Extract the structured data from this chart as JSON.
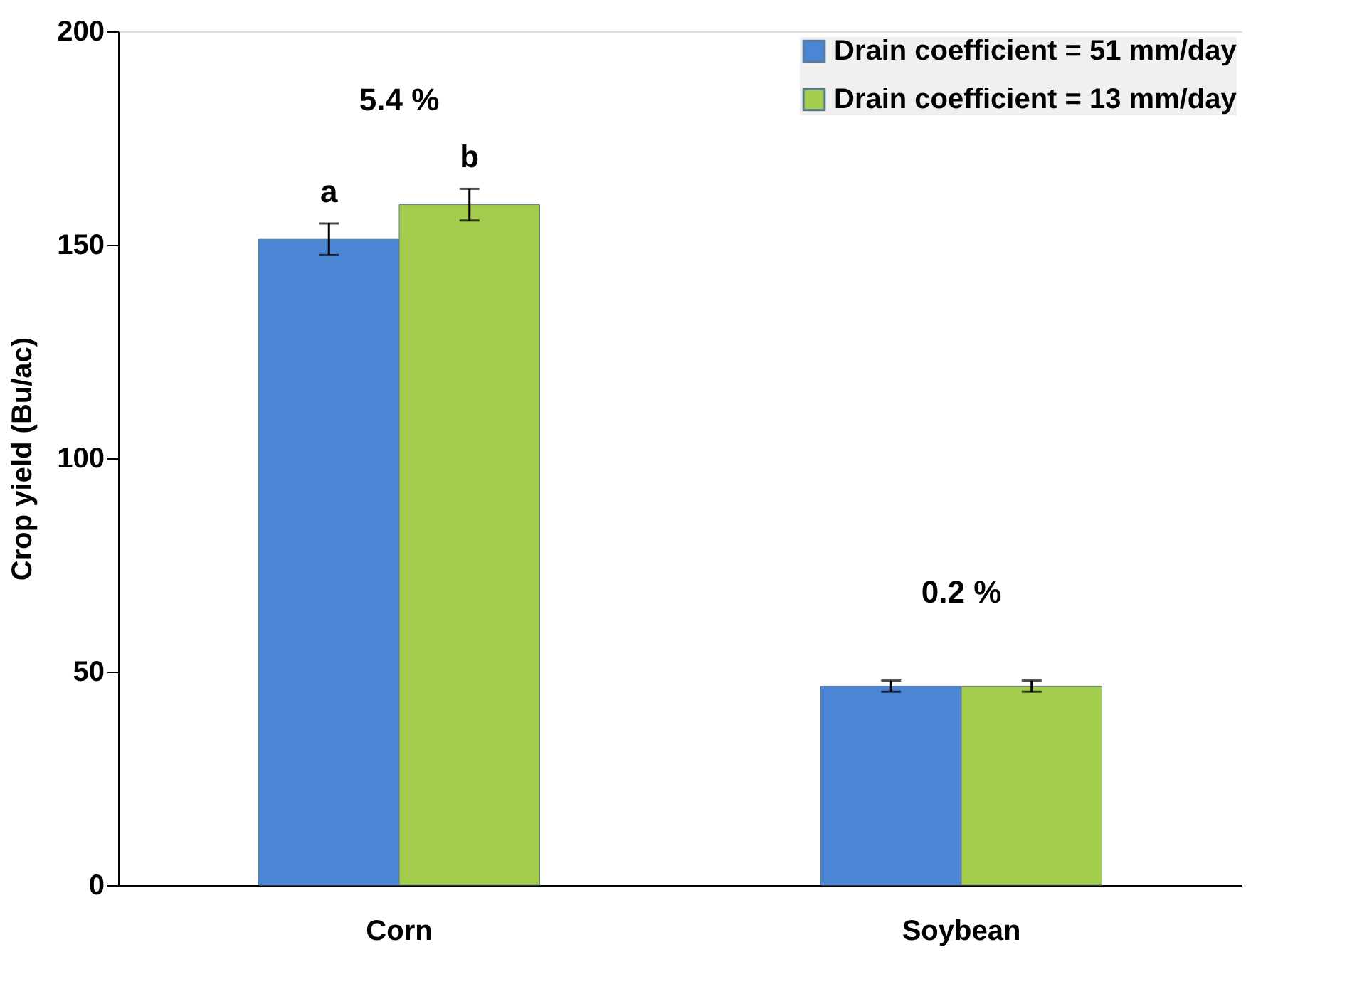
{
  "chart_data": {
    "type": "bar",
    "ylabel": "Crop yield (Bu/ac)",
    "categories": [
      "Corn",
      "Soybean"
    ],
    "series": [
      {
        "name": "Drain coefficient = 51 mm/day",
        "color": "#4a86d4",
        "values": [
          151.3,
          46.6
        ],
        "errors": [
          3.7,
          1.3
        ],
        "value_labels": [
          "a",
          null
        ]
      },
      {
        "name": "Drain coefficient = 13 mm/day",
        "color": "#a4cc4c",
        "values": [
          159.4,
          46.6
        ],
        "errors": [
          3.7,
          1.3
        ],
        "value_labels": [
          "b",
          null
        ]
      }
    ],
    "annotations": [
      "5.4 %",
      "0.2 %"
    ],
    "ylim": [
      0,
      200
    ],
    "yticks": [
      0,
      50,
      100,
      150,
      200
    ],
    "grid": false,
    "legend": "top right"
  }
}
